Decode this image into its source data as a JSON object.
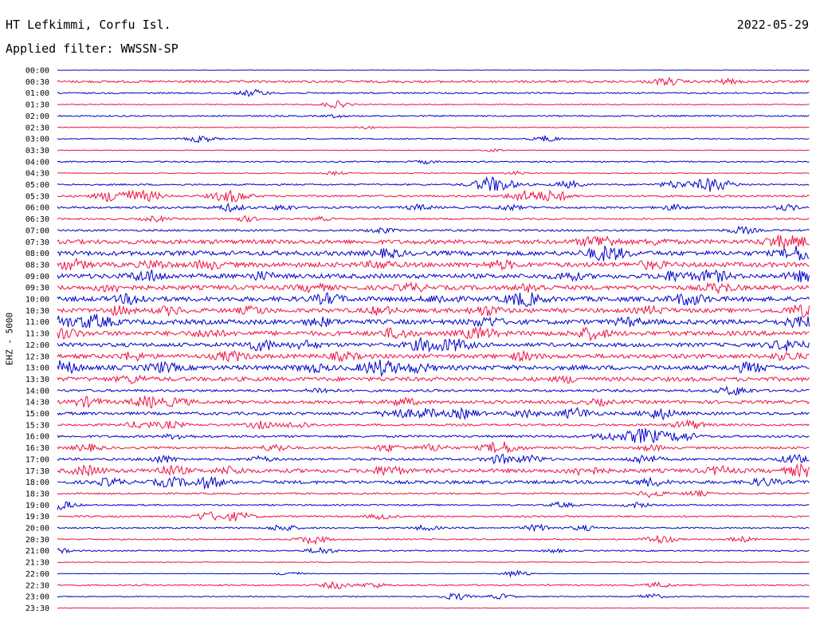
{
  "header": {
    "station": "HT Lefkimmi, Corfu Isl.",
    "date": "2022-05-29",
    "filter": "Applied filter: WWSSN-SP"
  },
  "channel_label": "EHZ - 5000",
  "colors": {
    "even_hour": "#0000cc",
    "half_hour": "#ee1144",
    "text": "#000000",
    "background": "#ffffff"
  },
  "chart_data": {
    "type": "line",
    "title": "",
    "xlabel": "",
    "ylabel": "EHZ - 5000",
    "trace_labels": [
      "00:00",
      "00:30",
      "01:00",
      "01:30",
      "02:00",
      "02:30",
      "03:00",
      "03:30",
      "04:00",
      "04:30",
      "05:00",
      "05:30",
      "06:00",
      "06:30",
      "07:00",
      "07:30",
      "08:00",
      "08:30",
      "09:00",
      "09:30",
      "10:00",
      "10:30",
      "11:00",
      "11:30",
      "12:00",
      "12:30",
      "13:00",
      "13:30",
      "14:00",
      "14:30",
      "15:00",
      "15:30",
      "16:00",
      "16:30",
      "17:00",
      "17:30",
      "18:00",
      "18:30",
      "19:00",
      "19:30",
      "20:00",
      "20:30",
      "21:00",
      "21:30",
      "22:00",
      "22:30",
      "23:00",
      "23:30"
    ],
    "noise_level": [
      0.2,
      1.4,
      0.9,
      0.6,
      0.9,
      0.5,
      0.7,
      0.4,
      0.8,
      0.5,
      1.0,
      1.2,
      1.3,
      1.0,
      1.2,
      2.6,
      2.8,
      2.9,
      2.8,
      2.7,
      2.9,
      2.6,
      2.9,
      2.8,
      2.4,
      2.6,
      2.8,
      2.5,
      1.5,
      2.0,
      1.8,
      1.3,
      1.4,
      1.4,
      1.4,
      2.4,
      2.0,
      1.0,
      0.9,
      1.0,
      0.9,
      0.8,
      0.8,
      0.5,
      0.3,
      0.9,
      0.6,
      0.3
    ],
    "events": [
      [],
      [
        [
          0.81,
          4
        ],
        [
          0.89,
          2.5
        ]
      ],
      [
        [
          0.26,
          4
        ]
      ],
      [
        [
          0.37,
          4
        ]
      ],
      [
        [
          0.37,
          1.5
        ]
      ],
      [
        [
          0.41,
          1.5
        ]
      ],
      [
        [
          0.19,
          4
        ],
        [
          0.65,
          3.5
        ]
      ],
      [
        [
          0.58,
          1.5
        ]
      ],
      [
        [
          0.49,
          2
        ]
      ],
      [
        [
          0.37,
          2
        ],
        [
          0.61,
          2
        ]
      ],
      [
        [
          0.58,
          9
        ],
        [
          0.68,
          4
        ],
        [
          0.82,
          4
        ],
        [
          0.87,
          8
        ]
      ],
      [
        [
          0.08,
          8
        ],
        [
          0.12,
          5
        ],
        [
          0.23,
          7
        ],
        [
          0.62,
          6
        ],
        [
          0.66,
          6
        ]
      ],
      [
        [
          0.23,
          4
        ],
        [
          0.3,
          3
        ],
        [
          0.48,
          3
        ],
        [
          0.6,
          3
        ],
        [
          0.82,
          3
        ],
        [
          0.97,
          3
        ]
      ],
      [
        [
          0.13,
          3
        ],
        [
          0.25,
          3
        ],
        [
          0.35,
          2
        ]
      ],
      [
        [
          0.43,
          3
        ],
        [
          0.91,
          4
        ]
      ],
      [
        [
          0.72,
          7
        ],
        [
          0.8,
          3
        ],
        [
          0.96,
          6
        ],
        [
          0.99,
          4
        ]
      ],
      [
        [
          0.44,
          4
        ],
        [
          0.73,
          8
        ],
        [
          0.99,
          8
        ]
      ],
      [
        [
          0.02,
          5
        ],
        [
          0.13,
          4
        ],
        [
          0.2,
          4
        ],
        [
          0.43,
          4
        ],
        [
          0.59,
          4
        ],
        [
          0.79,
          4
        ]
      ],
      [
        [
          0.12,
          6
        ],
        [
          0.27,
          4
        ],
        [
          0.68,
          4
        ],
        [
          0.82,
          5
        ],
        [
          0.87,
          6
        ],
        [
          0.99,
          5
        ]
      ],
      [
        [
          0.07,
          4
        ],
        [
          0.34,
          4
        ],
        [
          0.47,
          4
        ],
        [
          0.63,
          4
        ],
        [
          0.88,
          5
        ]
      ],
      [
        [
          0.1,
          5
        ],
        [
          0.36,
          5
        ],
        [
          0.51,
          4
        ],
        [
          0.62,
          7
        ],
        [
          0.84,
          6
        ]
      ],
      [
        [
          0.08,
          4
        ],
        [
          0.15,
          4
        ],
        [
          0.26,
          4
        ],
        [
          0.43,
          4
        ],
        [
          0.57,
          5
        ],
        [
          0.79,
          4
        ],
        [
          0.99,
          6
        ]
      ],
      [
        [
          0.0,
          6
        ],
        [
          0.05,
          7
        ],
        [
          0.35,
          4
        ],
        [
          0.57,
          5
        ],
        [
          0.76,
          4
        ],
        [
          0.99,
          6
        ]
      ],
      [
        [
          0.01,
          5
        ],
        [
          0.2,
          4
        ],
        [
          0.45,
          5
        ],
        [
          0.56,
          6
        ],
        [
          0.71,
          6
        ]
      ],
      [
        [
          0.27,
          6
        ],
        [
          0.33,
          4
        ],
        [
          0.49,
          7
        ],
        [
          0.53,
          6
        ],
        [
          0.97,
          6
        ]
      ],
      [
        [
          0.1,
          4
        ],
        [
          0.23,
          5
        ],
        [
          0.38,
          4
        ],
        [
          0.62,
          4
        ],
        [
          0.97,
          4
        ]
      ],
      [
        [
          0.0,
          8
        ],
        [
          0.14,
          5
        ],
        [
          0.34,
          4
        ],
        [
          0.43,
          8
        ],
        [
          0.48,
          4
        ],
        [
          0.92,
          5
        ]
      ],
      [
        [
          0.1,
          4
        ],
        [
          0.68,
          3
        ]
      ],
      [
        [
          0.35,
          3
        ],
        [
          0.9,
          5
        ]
      ],
      [
        [
          0.04,
          5
        ],
        [
          0.12,
          6
        ],
        [
          0.16,
          4
        ],
        [
          0.46,
          4
        ],
        [
          0.72,
          3
        ]
      ],
      [
        [
          0.45,
          5
        ],
        [
          0.49,
          5
        ],
        [
          0.54,
          5
        ],
        [
          0.62,
          4
        ],
        [
          0.69,
          6
        ],
        [
          0.8,
          6
        ]
      ],
      [
        [
          0.11,
          4
        ],
        [
          0.15,
          4
        ],
        [
          0.27,
          4
        ],
        [
          0.32,
          4
        ],
        [
          0.84,
          5
        ]
      ],
      [
        [
          0.16,
          3
        ],
        [
          0.73,
          4
        ],
        [
          0.78,
          9
        ],
        [
          0.83,
          5
        ]
      ],
      [
        [
          0.04,
          4
        ],
        [
          0.29,
          4
        ],
        [
          0.44,
          4
        ],
        [
          0.5,
          4
        ],
        [
          0.59,
          7
        ],
        [
          0.79,
          3
        ]
      ],
      [
        [
          0.14,
          4
        ],
        [
          0.27,
          3
        ],
        [
          0.59,
          5
        ],
        [
          0.63,
          4
        ],
        [
          0.78,
          5
        ],
        [
          0.98,
          5
        ]
      ],
      [
        [
          0.04,
          5
        ],
        [
          0.15,
          5
        ],
        [
          0.23,
          4
        ],
        [
          0.44,
          5
        ],
        [
          0.7,
          5
        ],
        [
          0.88,
          4
        ],
        [
          0.99,
          6
        ]
      ],
      [
        [
          0.07,
          4
        ],
        [
          0.15,
          5
        ],
        [
          0.2,
          6
        ],
        [
          0.79,
          4
        ],
        [
          0.94,
          4
        ]
      ],
      [
        [
          0.79,
          4
        ],
        [
          0.85,
          3
        ]
      ],
      [
        [
          0.0,
          6
        ],
        [
          0.67,
          3
        ],
        [
          0.77,
          3
        ]
      ],
      [
        [
          0.2,
          5
        ],
        [
          0.24,
          5
        ],
        [
          0.43,
          3
        ]
      ],
      [
        [
          0.3,
          4
        ],
        [
          0.49,
          3
        ],
        [
          0.64,
          4
        ],
        [
          0.7,
          3
        ]
      ],
      [
        [
          0.34,
          5
        ],
        [
          0.8,
          5
        ],
        [
          0.91,
          3
        ]
      ],
      [
        [
          0.0,
          3
        ],
        [
          0.35,
          4
        ],
        [
          0.66,
          2
        ]
      ],
      [],
      [
        [
          0.31,
          3
        ],
        [
          0.61,
          4
        ]
      ],
      [
        [
          0.37,
          4
        ],
        [
          0.42,
          3
        ],
        [
          0.8,
          3
        ]
      ],
      [
        [
          0.53,
          4
        ],
        [
          0.59,
          3
        ],
        [
          0.79,
          3
        ]
      ],
      []
    ]
  }
}
